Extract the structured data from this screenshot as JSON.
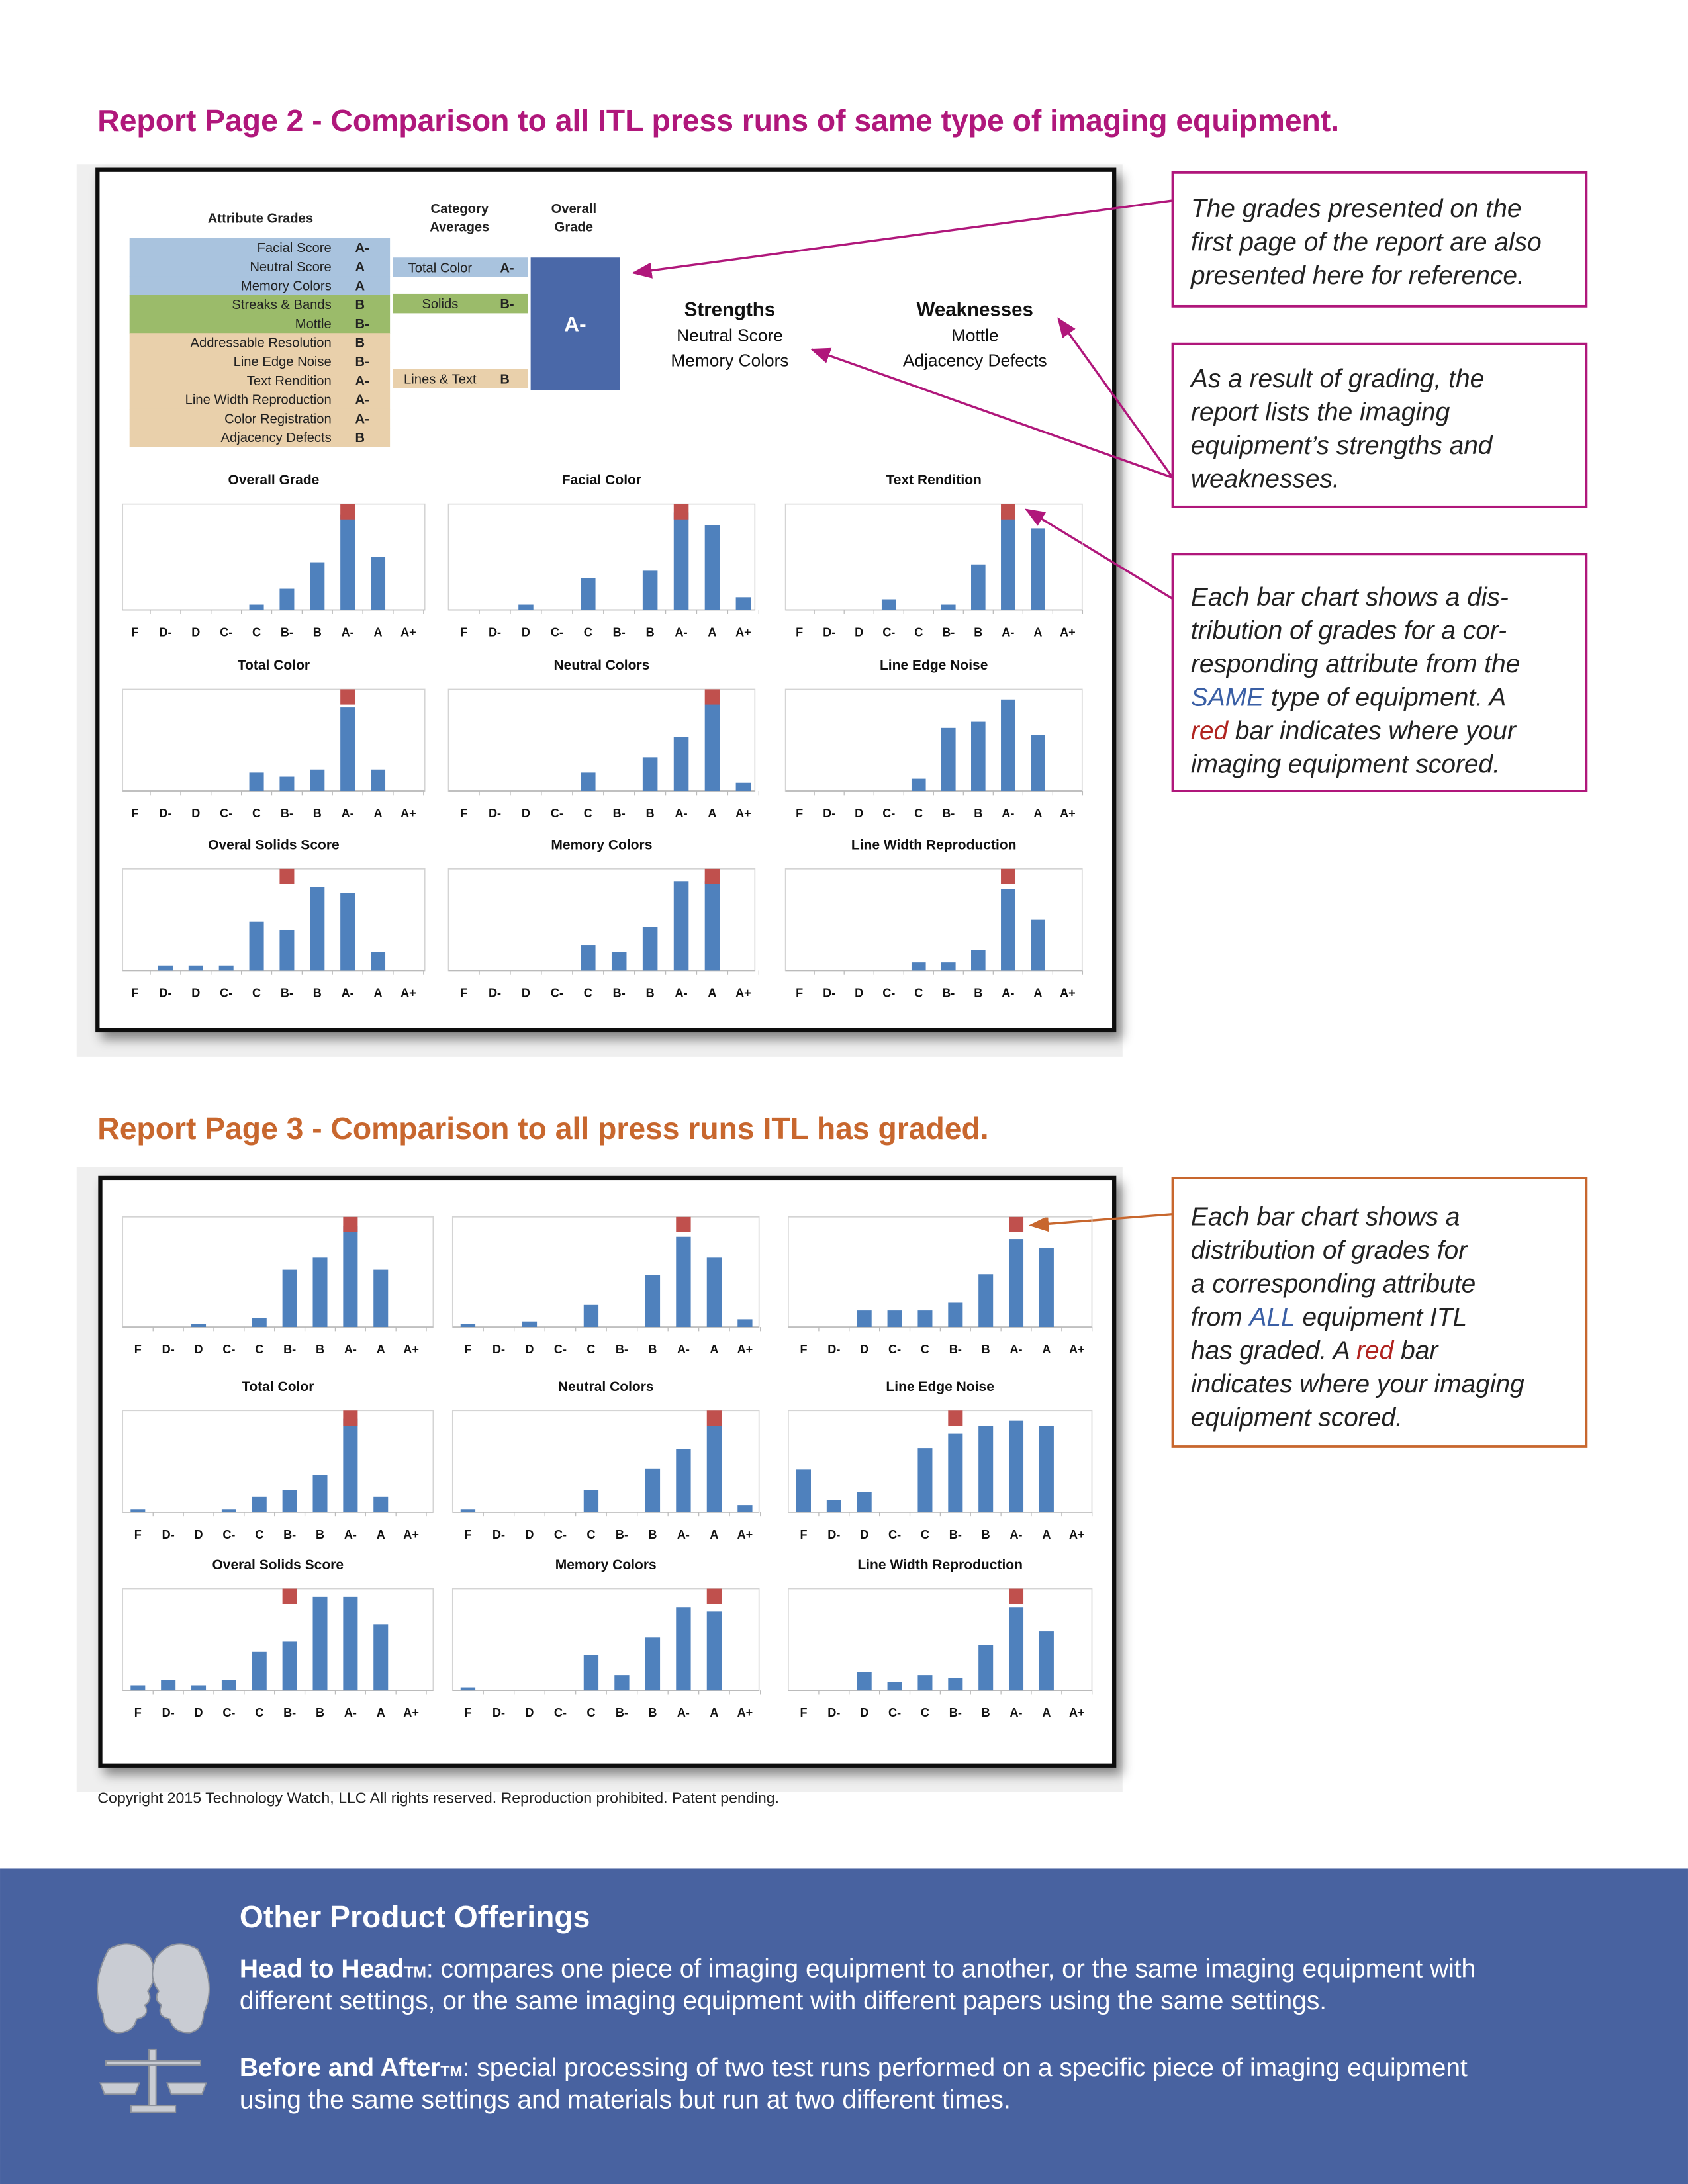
{
  "grades": [
    "F",
    "D-",
    "D",
    "C-",
    "C",
    "B-",
    "B",
    "A-",
    "A",
    "A+"
  ],
  "copyright": "Copyright 2015 Technology Watch, LLC All rights reserved. Reproduction prohibited. Patent pending.",
  "report2": {
    "heading": "Report Page 2 - Comparison to all ITL press runs of same type of imaging equipment.",
    "attribute_header": "Attribute Grades",
    "category_header": [
      "Category",
      "Averages"
    ],
    "overall_header": [
      "Overall",
      "Grade"
    ],
    "attributes": [
      {
        "label": "Facial Score",
        "grade": "A-",
        "color": "#a9c3de"
      },
      {
        "label": "Neutral Score",
        "grade": "A",
        "color": "#a9c3de"
      },
      {
        "label": "Memory Colors",
        "grade": "A",
        "color": "#a9c3de"
      },
      {
        "label": "Streaks & Bands",
        "grade": "B",
        "color": "#9bbb6a"
      },
      {
        "label": "Mottle",
        "grade": "B-",
        "color": "#9bbb6a"
      },
      {
        "label": "Addressable Resolution",
        "grade": "B",
        "color": "#e9d0ab"
      },
      {
        "label": "Line Edge Noise",
        "grade": "B-",
        "color": "#e9d0ab"
      },
      {
        "label": "Text Rendition",
        "grade": "A-",
        "color": "#e9d0ab"
      },
      {
        "label": "Line Width Reproduction",
        "grade": "A-",
        "color": "#e9d0ab"
      },
      {
        "label": "Color Registration",
        "grade": "A-",
        "color": "#e9d0ab"
      },
      {
        "label": "Adjacency Defects",
        "grade": "B",
        "color": "#e9d0ab"
      }
    ],
    "categories": [
      {
        "label": "Total Color",
        "grade": "A-",
        "color": "#a9c3de"
      },
      {
        "label": "Solids",
        "grade": "B-",
        "color": "#9bbb6a"
      },
      {
        "label": "Lines & Text",
        "grade": "B",
        "color": "#e9d0ab"
      }
    ],
    "overall": {
      "grade": "A-",
      "color": "#4a68a8"
    },
    "strengths": {
      "title": "Strengths",
      "items": [
        "Neutral Score",
        "Memory Colors"
      ]
    },
    "weaknesses": {
      "title": "Weaknesses",
      "items": [
        "Mottle",
        "Adjacency Defects"
      ]
    },
    "bar_color": "#4f81bd",
    "marker_color": "#c0504d",
    "ylim": [
      0,
      100
    ],
    "charts": [
      {
        "title": "Overall Grade",
        "values": [
          0,
          0,
          0,
          0,
          5,
          20,
          45,
          90,
          50,
          0
        ],
        "score": "A-"
      },
      {
        "title": "Facial Color",
        "values": [
          0,
          0,
          5,
          0,
          30,
          0,
          37,
          92,
          80,
          12
        ],
        "score": "A-"
      },
      {
        "title": "Text Rendition",
        "values": [
          0,
          0,
          0,
          10,
          0,
          5,
          43,
          92,
          77,
          0
        ],
        "score": "A-"
      },
      {
        "title": "Total Color",
        "values": [
          0,
          0,
          0,
          0,
          18,
          14,
          21,
          82,
          21,
          0
        ],
        "score": "A-"
      },
      {
        "title": "Neutral Colors",
        "values": [
          0,
          0,
          0,
          0,
          18,
          0,
          33,
          53,
          85,
          8
        ],
        "score": "A"
      },
      {
        "title": "Line Edge Noise",
        "values": [
          0,
          0,
          0,
          0,
          12,
          62,
          68,
          90,
          55,
          0
        ],
        "score": null
      },
      {
        "title": "Overal Solids Score",
        "values": [
          0,
          5,
          5,
          5,
          48,
          40,
          82,
          76,
          18,
          0
        ],
        "score": "B-"
      },
      {
        "title": "Memory Colors",
        "values": [
          0,
          0,
          0,
          0,
          25,
          18,
          43,
          88,
          88,
          0
        ],
        "score": "A"
      },
      {
        "title": "Line Width Reproduction",
        "values": [
          0,
          0,
          0,
          0,
          8,
          8,
          20,
          80,
          50,
          0
        ],
        "score": "A-"
      }
    ]
  },
  "report3": {
    "heading": "Report Page 3 - Comparison to all press runs ITL has graded.",
    "bar_color": "#4f81bd",
    "marker_color": "#c0504d",
    "ylim": [
      0,
      100
    ],
    "charts": [
      {
        "values": [
          0,
          0,
          3,
          0,
          8,
          52,
          63,
          92,
          52,
          0
        ],
        "score": "A-"
      },
      {
        "values": [
          3,
          0,
          5,
          0,
          20,
          0,
          47,
          82,
          63,
          7
        ],
        "score": "A-"
      },
      {
        "values": [
          0,
          0,
          15,
          15,
          15,
          22,
          48,
          80,
          72,
          0
        ],
        "score": "A-"
      },
      {
        "title": "Total Color",
        "values": [
          3,
          0,
          0,
          3,
          15,
          22,
          37,
          92,
          15,
          0
        ],
        "score": "A-"
      },
      {
        "title": "Neutral Colors",
        "values": [
          3,
          0,
          0,
          0,
          22,
          0,
          43,
          62,
          85,
          7
        ],
        "score": "A"
      },
      {
        "title": "Line Edge Noise",
        "values": [
          42,
          12,
          20,
          0,
          63,
          77,
          85,
          90,
          85,
          0
        ],
        "score": "B-"
      },
      {
        "title": "Overal Solids Score",
        "values": [
          5,
          10,
          5,
          10,
          38,
          48,
          92,
          92,
          65,
          0
        ],
        "score": "B-"
      },
      {
        "title": "Memory Colors",
        "values": [
          3,
          0,
          0,
          0,
          35,
          15,
          52,
          82,
          78,
          0
        ],
        "score": "A"
      },
      {
        "title": "Line Width Reproduction",
        "values": [
          0,
          0,
          18,
          8,
          15,
          12,
          45,
          82,
          58,
          0
        ],
        "score": "A-"
      }
    ]
  },
  "callouts": [
    {
      "border": "#b0177b",
      "lines": [
        [
          "The grades presented on the"
        ],
        [
          "first page of the report are also"
        ],
        [
          "presented here for reference."
        ]
      ]
    },
    {
      "border": "#b0177b",
      "lines": [
        [
          "As a result of grading, the"
        ],
        [
          "report lists the imaging"
        ],
        [
          "equipment’s strengths and"
        ],
        [
          "weaknesses."
        ]
      ]
    },
    {
      "border": "#b0177b",
      "lines": [
        [
          "Each bar chart shows a dis-"
        ],
        [
          "tribution of grades for a cor-"
        ],
        [
          "responding attribute from the"
        ],
        [
          {
            "text": "SAME",
            "color": "#3a5fa5"
          },
          " type of equipment. A"
        ],
        [
          {
            "text": "red",
            "color": "#b0231f"
          },
          " bar indicates where your"
        ],
        [
          "imaging equipment scored."
        ]
      ]
    },
    {
      "border": "#c8672e",
      "lines": [
        [
          "Each bar chart shows a"
        ],
        [
          "distribution of grades for"
        ],
        [
          "a corresponding attribute"
        ],
        [
          "from ",
          {
            "text": "ALL",
            "color": "#3a5fa5"
          },
          " equipment ITL"
        ],
        [
          "has graded. A ",
          {
            "text": "red",
            "color": "#b0231f"
          },
          " bar"
        ],
        [
          "indicates where your imaging"
        ],
        [
          "equipment scored."
        ]
      ]
    }
  ],
  "footer": {
    "title": "Other Product Offerings",
    "items": [
      {
        "name": "Head to Head",
        "mark": "TM",
        "lines": [
          ": compares one piece of imaging equipment to another, or the same imaging equipment with",
          "different settings, or the same imaging equipment with different papers using the same settings."
        ]
      },
      {
        "name": "Before and After",
        "mark": "TM",
        "lines": [
          ": special processing of two test runs performed on a specific piece of imaging equipment",
          "using the same settings and materials but run at two different times."
        ]
      }
    ]
  }
}
